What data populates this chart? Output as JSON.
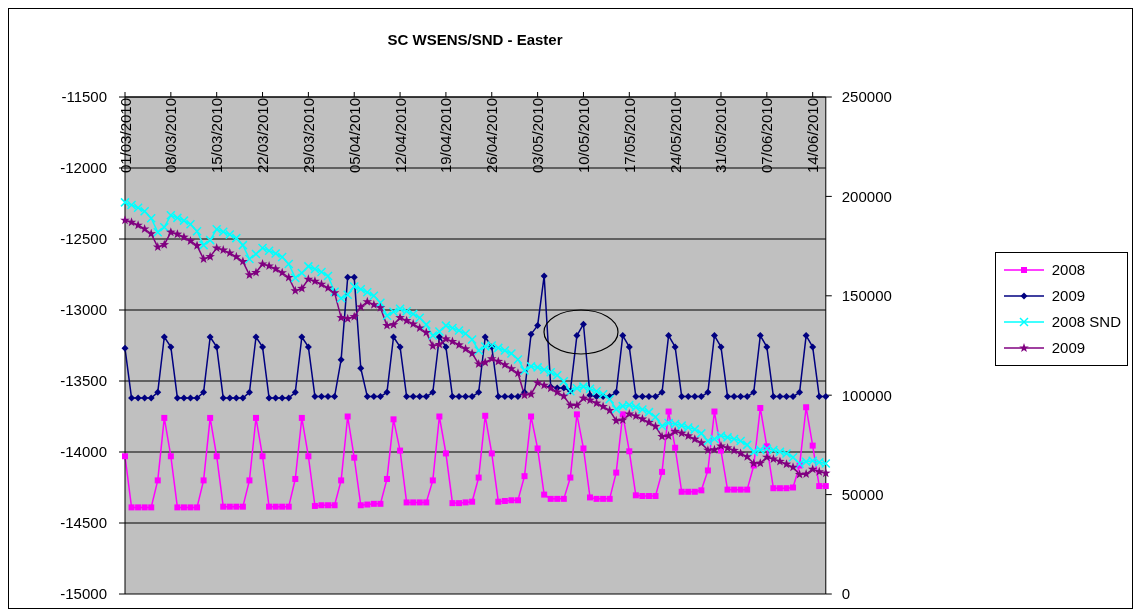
{
  "chart_data": {
    "type": "line",
    "title": "SC WSENS/SND - Easter",
    "categories": [
      "01/03/2010",
      null,
      null,
      null,
      null,
      null,
      null,
      "08/03/2010",
      null,
      null,
      null,
      null,
      null,
      null,
      "15/03/2010",
      null,
      null,
      null,
      null,
      null,
      null,
      "22/03/2010",
      null,
      null,
      null,
      null,
      null,
      null,
      "29/03/2010",
      null,
      null,
      null,
      null,
      null,
      null,
      "05/04/2010",
      null,
      null,
      null,
      null,
      null,
      null,
      "12/04/2010",
      null,
      null,
      null,
      null,
      null,
      null,
      "19/04/2010",
      null,
      null,
      null,
      null,
      null,
      null,
      "26/04/2010",
      null,
      null,
      null,
      null,
      null,
      null,
      "03/05/2010",
      null,
      null,
      null,
      null,
      null,
      null,
      "10/05/2010",
      null,
      null,
      null,
      null,
      null,
      null,
      "17/05/2010",
      null,
      null,
      null,
      null,
      null,
      null,
      "24/05/2010",
      null,
      null,
      null,
      null,
      null,
      null,
      "31/05/2010",
      null,
      null,
      null,
      null,
      null,
      null,
      "07/06/2010",
      null,
      null,
      null,
      null,
      null,
      null,
      "14/06/2010",
      null,
      null
    ],
    "series": [
      {
        "name": "2008",
        "color": "#ff00ff",
        "marker": "square",
        "values": [
          -14030,
          -14390,
          -14390,
          -14390,
          -14390,
          -14200,
          -13760,
          -14030,
          -14390,
          -14390,
          -14390,
          -14390,
          -14200,
          -13760,
          -14030,
          -14385,
          -14385,
          -14385,
          -14385,
          -14200,
          -13760,
          -14030,
          -14385,
          -14385,
          -14385,
          -14385,
          -14190,
          -13760,
          -14030,
          -14380,
          -14375,
          -14375,
          -14375,
          -14200,
          -13750,
          -14040,
          -14375,
          -14370,
          -14365,
          -14365,
          -14190,
          -13770,
          -13990,
          -14355,
          -14355,
          -14355,
          -14355,
          -14200,
          -13750,
          -14010,
          -14360,
          -14360,
          -14355,
          -14350,
          -14180,
          -13745,
          -14010,
          -14350,
          -14345,
          -14340,
          -14340,
          -14170,
          -13750,
          -13975,
          -14300,
          -14330,
          -14330,
          -14330,
          -14180,
          -13735,
          -13975,
          -14320,
          -14330,
          -14330,
          -14330,
          -14145,
          -13735,
          -13995,
          -14305,
          -14310,
          -14310,
          -14310,
          -14140,
          -13715,
          -13970,
          -14280,
          -14280,
          -14280,
          -14270,
          -14130,
          -13715,
          -13990,
          -14265,
          -14265,
          -14265,
          -14265,
          -14095,
          -13690,
          -13960,
          -14255,
          -14255,
          -14255,
          -14250,
          -14095,
          -13685,
          -13955,
          -14240,
          -14240
        ]
      },
      {
        "name": "2009",
        "color": "#000080",
        "marker": "diamond",
        "values": [
          -13270,
          -13620,
          -13620,
          -13620,
          -13620,
          -13580,
          -13190,
          -13260,
          -13620,
          -13620,
          -13620,
          -13620,
          -13580,
          -13190,
          -13260,
          -13620,
          -13620,
          -13620,
          -13620,
          -13580,
          -13190,
          -13260,
          -13620,
          -13620,
          -13620,
          -13620,
          -13580,
          -13190,
          -13260,
          -13610,
          -13610,
          -13610,
          -13610,
          -13350,
          -12770,
          -12770,
          -13410,
          -13610,
          -13610,
          -13610,
          -13580,
          -13190,
          -13260,
          -13610,
          -13610,
          -13610,
          -13610,
          -13580,
          -13190,
          -13260,
          -13610,
          -13610,
          -13610,
          -13610,
          -13580,
          -13190,
          -13260,
          -13610,
          -13610,
          -13610,
          -13610,
          -13580,
          -13170,
          -13110,
          -12760,
          -13540,
          -13550,
          -13550,
          -13570,
          -13180,
          -13100,
          -13600,
          -13610,
          -13610,
          -13610,
          -13580,
          -13180,
          -13260,
          -13610,
          -13610,
          -13610,
          -13610,
          -13580,
          -13180,
          -13260,
          -13610,
          -13610,
          -13610,
          -13610,
          -13580,
          -13180,
          -13260,
          -13610,
          -13610,
          -13610,
          -13610,
          -13580,
          -13180,
          -13260,
          -13610,
          -13610,
          -13610,
          -13610,
          -13580,
          -13180,
          -13260,
          -13610,
          -13610
        ]
      },
      {
        "name": "2008 SND",
        "color": "#00ffff",
        "marker": "cross",
        "axis": "y2",
        "values": [
          197000,
          195700,
          194300,
          192500,
          189000,
          182000,
          184500,
          190500,
          189200,
          187800,
          186000,
          182500,
          175500,
          178000,
          183500,
          182200,
          180800,
          179000,
          175500,
          168500,
          171000,
          174000,
          172700,
          171300,
          169500,
          166000,
          159000,
          161500,
          164800,
          163500,
          162000,
          160000,
          152000,
          148800,
          150500,
          154700,
          153300,
          151800,
          150000,
          146500,
          140000,
          142000,
          143500,
          142200,
          140800,
          139000,
          135500,
          130000,
          132000,
          135000,
          133800,
          132500,
          131000,
          128000,
          122500,
          124500,
          125000,
          123800,
          122500,
          121000,
          118000,
          112500,
          114500,
          114000,
          112800,
          111500,
          110000,
          107000,
          102000,
          103500,
          104300,
          103200,
          102000,
          100500,
          98000,
          93000,
          94500,
          95000,
          94000,
          92800,
          91500,
          89000,
          84500,
          86000,
          85500,
          84700,
          83800,
          82800,
          80800,
          77000,
          78000,
          79600,
          78800,
          78000,
          77000,
          75000,
          71500,
          72500,
          73100,
          72400,
          71600,
          70700,
          68800,
          65500,
          66500,
          67000,
          66300,
          65600
        ]
      },
      {
        "name": "2009",
        "color": "#800080",
        "marker": "star",
        "axis": "y2",
        "values": [
          188000,
          187000,
          185500,
          183600,
          181200,
          174500,
          175700,
          182000,
          181000,
          179500,
          177600,
          175200,
          168500,
          169700,
          174000,
          173000,
          171500,
          169600,
          167200,
          160500,
          161700,
          166000,
          165000,
          163500,
          161600,
          159200,
          152500,
          153700,
          158300,
          157300,
          155800,
          153900,
          151500,
          139000,
          138500,
          139500,
          144400,
          147000,
          145500,
          144000,
          135000,
          135500,
          139000,
          137500,
          135800,
          133800,
          131500,
          124800,
          125500,
          128300,
          127000,
          125300,
          123300,
          121000,
          115700,
          116500,
          118300,
          117000,
          115300,
          113300,
          111000,
          100000,
          100500,
          106200,
          105000,
          103500,
          101500,
          99500,
          95000,
          94900,
          98500,
          97500,
          96000,
          94300,
          92300,
          87200,
          87500,
          90500,
          89500,
          88000,
          86300,
          84300,
          79200,
          79500,
          81800,
          80900,
          79500,
          77900,
          76000,
          72300,
          72500,
          74400,
          73500,
          72200,
          70700,
          69000,
          65600,
          65800,
          68800,
          67900,
          66700,
          65300,
          63700,
          60100,
          60300,
          62700,
          61500,
          60800
        ]
      }
    ],
    "ylim": [
      -15000,
      -11500
    ],
    "yticks": [
      -15000,
      -14500,
      -14000,
      -13500,
      -13000,
      -12500,
      -12000,
      -11500
    ],
    "y2lim": [
      0,
      250000
    ],
    "y2ticks": [
      0,
      50000,
      100000,
      150000,
      200000,
      250000
    ],
    "grid": "y",
    "legend": "right",
    "line_style": "solid"
  }
}
